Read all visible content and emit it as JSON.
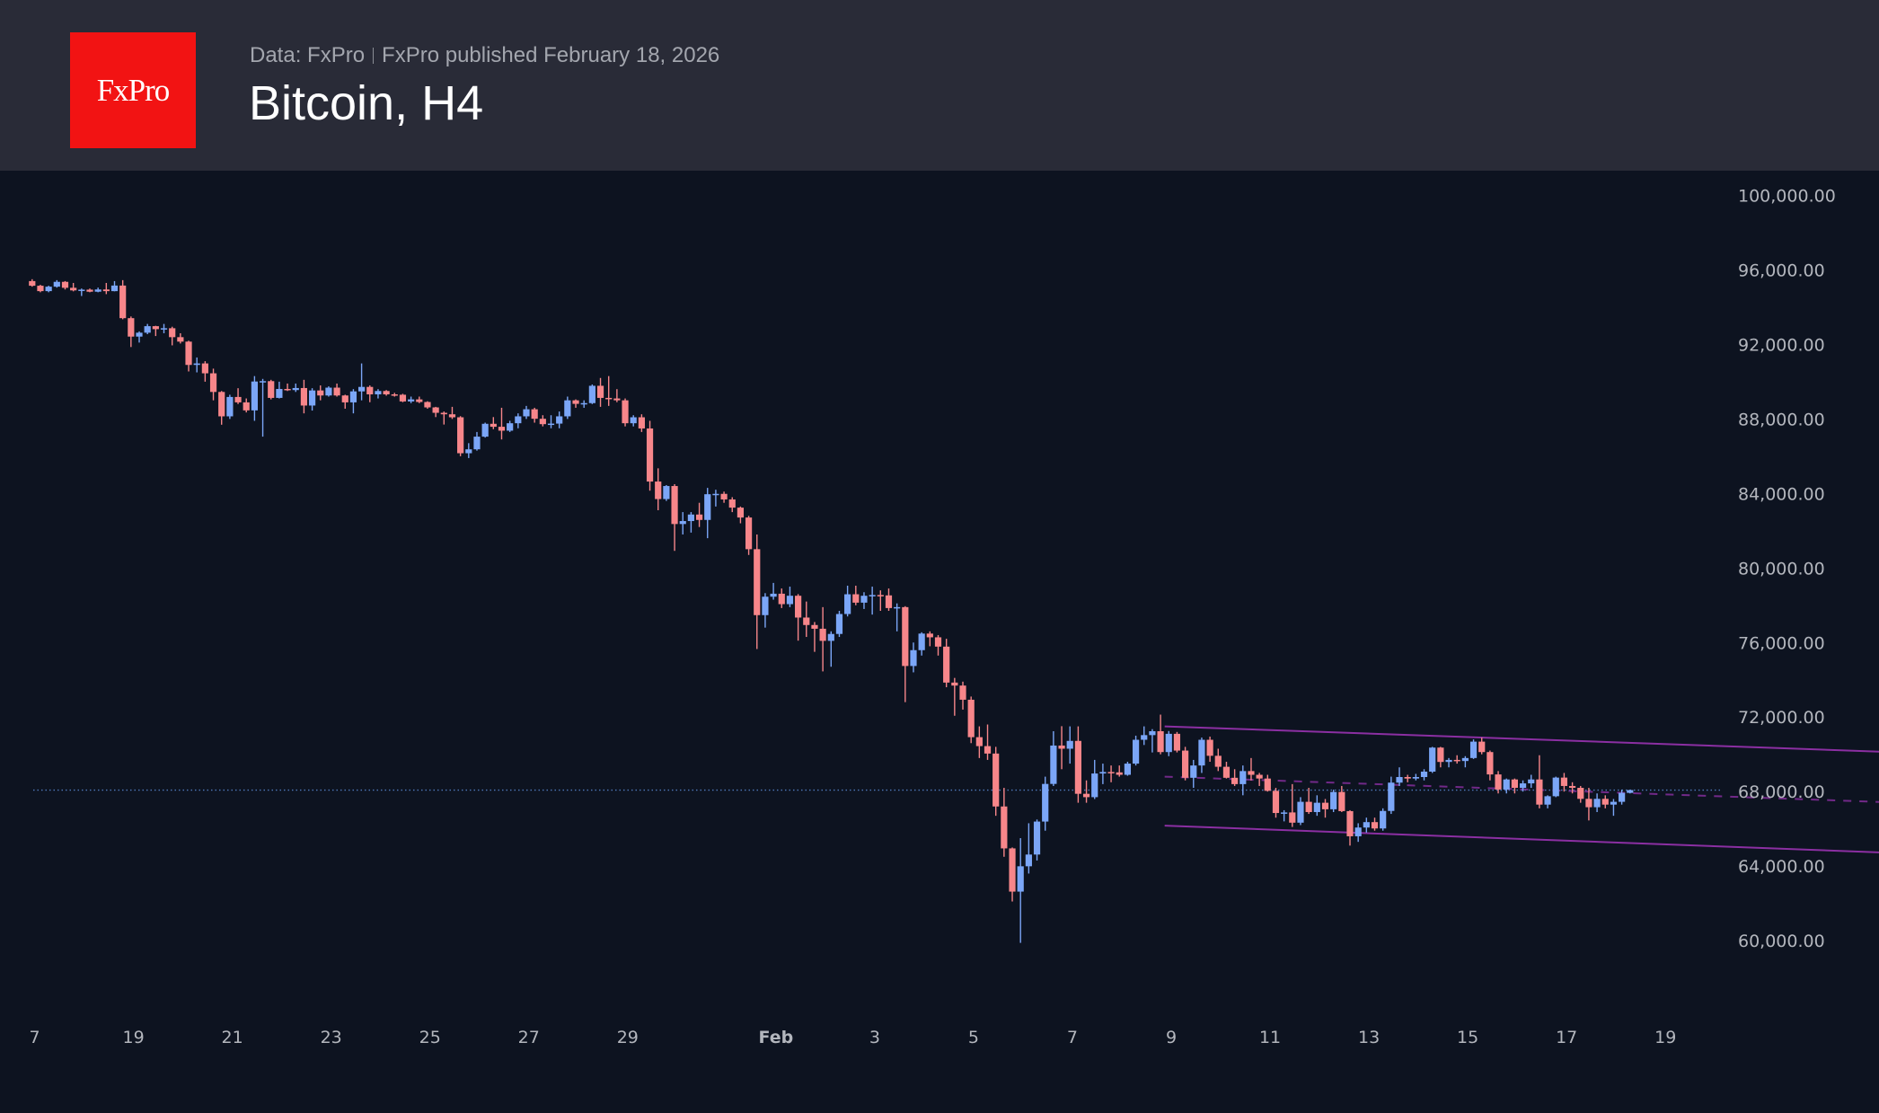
{
  "header": {
    "logo_text": "FxPro",
    "data_source": "Data: FxPro",
    "published": "FxPro published February 18, 2026",
    "title": "Bitcoin, H4"
  },
  "colors": {
    "up": "#7ba6f7",
    "down": "#f7868a",
    "channel": "#8b2fa2",
    "price_line": "#4f77b8",
    "axis_text": "#b3b6bd"
  },
  "chart_data": {
    "type": "candlestick",
    "title": "Bitcoin, H4",
    "timeframe": "4H",
    "first_candle": "Jan 16 20:00",
    "ylim": [
      57000,
      102000
    ],
    "y_ticks": [
      "100,000.00",
      "96,000.00",
      "92,000.00",
      "88,000.00",
      "84,000.00",
      "80,000.00",
      "76,000.00",
      "72,000.00",
      "68,000.00",
      "64,000.00",
      "60,000.00"
    ],
    "y_tick_values": [
      100000,
      96000,
      92000,
      88000,
      84000,
      80000,
      76000,
      72000,
      68000,
      64000,
      60000
    ],
    "x_ticks": [
      {
        "label": "7",
        "candle": 1
      },
      {
        "label": "19",
        "candle": 13
      },
      {
        "label": "21",
        "candle": 25
      },
      {
        "label": "23",
        "candle": 37
      },
      {
        "label": "25",
        "candle": 49
      },
      {
        "label": "27",
        "candle": 61
      },
      {
        "label": "29",
        "candle": 73
      },
      {
        "label": "Feb",
        "candle": 91,
        "bold": true
      },
      {
        "label": "3",
        "candle": 103
      },
      {
        "label": "5",
        "candle": 115
      },
      {
        "label": "7",
        "candle": 127
      },
      {
        "label": "9",
        "candle": 139
      },
      {
        "label": "11",
        "candle": 151
      },
      {
        "label": "13",
        "candle": 163
      },
      {
        "label": "15",
        "candle": 175
      },
      {
        "label": "17",
        "candle": 187
      },
      {
        "label": "19",
        "candle": 199
      }
    ],
    "current_price": 68080,
    "channel": {
      "upper": [
        [
          137.5,
          71500
        ],
        [
          227,
          70100
        ]
      ],
      "middle": [
        [
          137.5,
          68800
        ],
        [
          227,
          67400
        ]
      ],
      "lower": [
        [
          137.5,
          66170
        ],
        [
          227,
          64690
        ]
      ]
    },
    "ohlc_thousands": [
      [
        95.4,
        95.5,
        95.1,
        95.15
      ],
      [
        95.15,
        95.2,
        94.8,
        94.86
      ],
      [
        94.86,
        95.15,
        94.8,
        95.1
      ],
      [
        95.1,
        95.45,
        95.05,
        95.36
      ],
      [
        95.36,
        95.4,
        94.95,
        95.04
      ],
      [
        95.04,
        95.3,
        94.85,
        94.9
      ],
      [
        94.9,
        95.0,
        94.6,
        94.94
      ],
      [
        94.94,
        95.0,
        94.8,
        94.83
      ],
      [
        94.83,
        95.05,
        94.8,
        94.95
      ],
      [
        94.95,
        95.3,
        94.7,
        94.86
      ],
      [
        94.86,
        95.4,
        94.85,
        95.16
      ],
      [
        95.16,
        95.45,
        93.35,
        93.41
      ],
      [
        93.41,
        93.5,
        91.86,
        92.42
      ],
      [
        92.42,
        92.7,
        92.1,
        92.63
      ],
      [
        92.63,
        93.1,
        92.55,
        92.98
      ],
      [
        92.98,
        93.0,
        92.45,
        92.82
      ],
      [
        92.82,
        93.1,
        92.6,
        92.87
      ],
      [
        92.87,
        92.95,
        91.95,
        92.39
      ],
      [
        92.39,
        92.6,
        92.05,
        92.15
      ],
      [
        92.15,
        92.2,
        90.55,
        90.9
      ],
      [
        90.9,
        91.3,
        90.5,
        90.98
      ],
      [
        90.98,
        91.1,
        90.0,
        90.45
      ],
      [
        90.45,
        90.7,
        89.0,
        89.45
      ],
      [
        89.45,
        89.5,
        87.69,
        88.14
      ],
      [
        88.14,
        89.3,
        88.0,
        89.18
      ],
      [
        89.18,
        89.65,
        88.8,
        88.89
      ],
      [
        88.89,
        89.1,
        88.35,
        88.46
      ],
      [
        88.46,
        90.3,
        87.9,
        90.01
      ],
      [
        90.01,
        90.15,
        87.05,
        90.03
      ],
      [
        90.03,
        90.1,
        89.05,
        89.13
      ],
      [
        89.13,
        90.0,
        89.1,
        89.61
      ],
      [
        89.61,
        89.9,
        89.5,
        89.55
      ],
      [
        89.55,
        89.9,
        89.45,
        89.66
      ],
      [
        89.66,
        90.1,
        88.3,
        88.72
      ],
      [
        88.72,
        89.65,
        88.45,
        89.53
      ],
      [
        89.53,
        89.8,
        89.0,
        89.26
      ],
      [
        89.26,
        89.75,
        89.2,
        89.68
      ],
      [
        89.68,
        89.9,
        89.2,
        89.26
      ],
      [
        89.26,
        89.3,
        88.55,
        88.89
      ],
      [
        88.89,
        89.6,
        88.3,
        89.48
      ],
      [
        89.48,
        90.98,
        89.0,
        89.72
      ],
      [
        89.72,
        89.8,
        88.9,
        89.32
      ],
      [
        89.32,
        89.6,
        89.1,
        89.5
      ],
      [
        89.5,
        89.55,
        89.25,
        89.32
      ],
      [
        89.32,
        89.4,
        89.2,
        89.3
      ],
      [
        89.3,
        89.35,
        88.9,
        88.94
      ],
      [
        88.94,
        89.2,
        88.85,
        89.05
      ],
      [
        89.05,
        89.2,
        88.85,
        88.91
      ],
      [
        88.91,
        88.95,
        88.55,
        88.62
      ],
      [
        88.62,
        88.65,
        88.1,
        88.33
      ],
      [
        88.33,
        88.4,
        87.7,
        88.25
      ],
      [
        88.25,
        88.65,
        88.0,
        88.09
      ],
      [
        88.09,
        88.15,
        86.0,
        86.16
      ],
      [
        86.16,
        86.7,
        85.9,
        86.37
      ],
      [
        86.37,
        87.3,
        86.3,
        87.05
      ],
      [
        87.05,
        87.8,
        87.0,
        87.74
      ],
      [
        87.74,
        88.1,
        87.45,
        87.58
      ],
      [
        87.58,
        88.6,
        86.9,
        87.37
      ],
      [
        87.37,
        87.9,
        87.3,
        87.77
      ],
      [
        87.77,
        88.3,
        87.5,
        88.14
      ],
      [
        88.14,
        88.7,
        88.0,
        88.52
      ],
      [
        88.52,
        88.6,
        87.8,
        88.01
      ],
      [
        88.01,
        88.2,
        87.6,
        87.72
      ],
      [
        87.72,
        88.2,
        87.5,
        87.75
      ],
      [
        87.75,
        88.4,
        87.5,
        88.14
      ],
      [
        88.14,
        89.2,
        88.0,
        89.0
      ],
      [
        89.0,
        89.05,
        88.6,
        88.81
      ],
      [
        88.81,
        89.0,
        88.6,
        88.85
      ],
      [
        88.85,
        89.85,
        88.8,
        89.78
      ],
      [
        89.78,
        90.2,
        88.65,
        89.13
      ],
      [
        89.13,
        90.3,
        88.7,
        89.1
      ],
      [
        89.1,
        89.6,
        88.9,
        89.0
      ],
      [
        89.0,
        89.1,
        87.6,
        87.77
      ],
      [
        87.77,
        88.2,
        87.6,
        88.09
      ],
      [
        88.09,
        88.25,
        87.3,
        87.49
      ],
      [
        87.49,
        87.9,
        84.15,
        84.64
      ],
      [
        84.64,
        85.35,
        83.1,
        83.7
      ],
      [
        83.7,
        84.45,
        83.6,
        84.4
      ],
      [
        84.4,
        84.5,
        80.92,
        82.36
      ],
      [
        82.36,
        83.0,
        81.8,
        82.52
      ],
      [
        82.52,
        83.0,
        81.9,
        82.87
      ],
      [
        82.87,
        83.5,
        82.2,
        82.58
      ],
      [
        82.58,
        84.3,
        81.6,
        83.96
      ],
      [
        83.96,
        84.2,
        83.3,
        83.98
      ],
      [
        83.98,
        84.1,
        83.5,
        83.68
      ],
      [
        83.68,
        83.8,
        83.0,
        83.24
      ],
      [
        83.24,
        83.3,
        82.4,
        82.71
      ],
      [
        82.71,
        82.8,
        80.7,
        81.01
      ],
      [
        81.01,
        81.8,
        75.65,
        77.47
      ],
      [
        77.47,
        78.65,
        76.8,
        78.46
      ],
      [
        78.46,
        79.2,
        78.3,
        78.62
      ],
      [
        78.62,
        78.9,
        77.85,
        78.06
      ],
      [
        78.06,
        79.0,
        77.9,
        78.51
      ],
      [
        78.51,
        78.6,
        76.1,
        77.34
      ],
      [
        77.34,
        78.2,
        76.3,
        76.94
      ],
      [
        76.94,
        77.1,
        75.5,
        76.74
      ],
      [
        76.74,
        77.9,
        74.45,
        76.09
      ],
      [
        76.09,
        76.6,
        74.7,
        76.46
      ],
      [
        76.46,
        77.7,
        76.3,
        77.53
      ],
      [
        77.53,
        79.05,
        77.4,
        78.59
      ],
      [
        78.59,
        79.05,
        78.0,
        78.14
      ],
      [
        78.14,
        78.7,
        77.8,
        78.51
      ],
      [
        78.51,
        79.0,
        77.5,
        78.55
      ],
      [
        78.55,
        78.8,
        77.7,
        78.53
      ],
      [
        78.53,
        78.9,
        77.7,
        77.85
      ],
      [
        77.85,
        78.1,
        76.6,
        77.9
      ],
      [
        77.9,
        77.95,
        72.8,
        74.74
      ],
      [
        74.74,
        76.0,
        74.4,
        75.59
      ],
      [
        75.59,
        76.55,
        75.3,
        76.48
      ],
      [
        76.48,
        76.6,
        75.8,
        76.28
      ],
      [
        76.28,
        76.4,
        75.3,
        75.78
      ],
      [
        75.78,
        76.2,
        73.6,
        73.85
      ],
      [
        73.85,
        74.1,
        72.07,
        73.69
      ],
      [
        73.69,
        73.9,
        72.4,
        72.93
      ],
      [
        72.93,
        73.1,
        70.6,
        70.92
      ],
      [
        70.92,
        71.5,
        69.8,
        70.44
      ],
      [
        70.44,
        71.6,
        69.7,
        70.04
      ],
      [
        70.04,
        70.4,
        66.7,
        67.2
      ],
      [
        67.2,
        68.2,
        64.5,
        64.95
      ],
      [
        64.95,
        65.0,
        62.1,
        62.63
      ],
      [
        62.63,
        65.5,
        59.88,
        63.99
      ],
      [
        63.99,
        66.3,
        63.6,
        64.62
      ],
      [
        64.62,
        66.5,
        64.3,
        66.39
      ],
      [
        66.39,
        68.8,
        65.9,
        68.41
      ],
      [
        68.41,
        71.24,
        68.3,
        70.47
      ],
      [
        70.47,
        71.51,
        69.2,
        70.3
      ],
      [
        70.3,
        71.5,
        69.5,
        70.72
      ],
      [
        70.72,
        71.5,
        67.4,
        67.88
      ],
      [
        67.88,
        68.6,
        67.4,
        67.7
      ],
      [
        67.7,
        69.7,
        67.6,
        68.97
      ],
      [
        68.97,
        69.5,
        68.4,
        69.05
      ],
      [
        69.05,
        69.4,
        68.5,
        69.03
      ],
      [
        69.03,
        69.4,
        68.8,
        68.9
      ],
      [
        68.9,
        69.6,
        68.85,
        69.5
      ],
      [
        69.5,
        71.0,
        69.4,
        70.78
      ],
      [
        70.78,
        71.5,
        70.5,
        71.03
      ],
      [
        71.03,
        71.35,
        70.1,
        71.24
      ],
      [
        71.24,
        72.13,
        70.0,
        70.12
      ],
      [
        70.12,
        71.25,
        69.9,
        71.1
      ],
      [
        71.1,
        71.2,
        70.1,
        70.2
      ],
      [
        70.2,
        70.4,
        68.6,
        68.74
      ],
      [
        68.74,
        69.7,
        68.2,
        69.4
      ],
      [
        69.4,
        70.9,
        69.0,
        70.78
      ],
      [
        70.78,
        70.95,
        69.6,
        69.92
      ],
      [
        69.92,
        70.3,
        69.1,
        69.33
      ],
      [
        69.33,
        69.6,
        68.7,
        68.74
      ],
      [
        68.74,
        69.2,
        68.3,
        68.4
      ],
      [
        68.4,
        69.4,
        67.8,
        69.1
      ],
      [
        69.1,
        69.8,
        68.6,
        68.9
      ],
      [
        68.9,
        69.0,
        68.3,
        68.7
      ],
      [
        68.7,
        68.9,
        68.0,
        68.04
      ],
      [
        68.04,
        68.2,
        66.6,
        66.85
      ],
      [
        66.85,
        67.0,
        66.4,
        66.88
      ],
      [
        66.88,
        68.4,
        66.1,
        66.33
      ],
      [
        66.33,
        67.7,
        66.2,
        67.45
      ],
      [
        67.45,
        68.2,
        66.8,
        66.9
      ],
      [
        66.9,
        67.8,
        66.7,
        67.4
      ],
      [
        67.4,
        67.6,
        66.6,
        67.05
      ],
      [
        67.05,
        68.1,
        66.9,
        67.98
      ],
      [
        67.98,
        68.3,
        66.9,
        66.95
      ],
      [
        66.95,
        67.0,
        65.1,
        65.6
      ],
      [
        65.6,
        66.3,
        65.3,
        66.07
      ],
      [
        66.07,
        66.6,
        65.8,
        66.36
      ],
      [
        66.36,
        66.6,
        65.9,
        66.02
      ],
      [
        66.02,
        67.1,
        65.9,
        66.96
      ],
      [
        66.96,
        68.8,
        66.8,
        68.48
      ],
      [
        68.48,
        69.3,
        68.3,
        68.78
      ],
      [
        68.78,
        68.9,
        68.5,
        68.7
      ],
      [
        68.7,
        68.95,
        68.6,
        68.78
      ],
      [
        68.78,
        69.2,
        68.6,
        69.07
      ],
      [
        69.07,
        70.4,
        69.0,
        70.36
      ],
      [
        70.36,
        70.4,
        69.3,
        69.59
      ],
      [
        69.59,
        69.8,
        69.3,
        69.7
      ],
      [
        69.7,
        69.95,
        69.5,
        69.64
      ],
      [
        69.64,
        69.9,
        69.3,
        69.8
      ],
      [
        69.8,
        70.8,
        69.75,
        70.68
      ],
      [
        70.68,
        70.9,
        70.0,
        70.12
      ],
      [
        70.12,
        70.2,
        68.6,
        68.92
      ],
      [
        68.92,
        69.1,
        67.9,
        68.11
      ],
      [
        68.11,
        68.7,
        67.9,
        68.65
      ],
      [
        68.65,
        68.7,
        67.9,
        68.2
      ],
      [
        68.2,
        68.6,
        68.0,
        68.44
      ],
      [
        68.44,
        68.9,
        68.2,
        68.65
      ],
      [
        68.65,
        69.95,
        67.1,
        67.3
      ],
      [
        67.3,
        67.8,
        67.1,
        67.75
      ],
      [
        67.75,
        68.8,
        67.7,
        68.75
      ],
      [
        68.75,
        69.0,
        68.0,
        68.3
      ],
      [
        68.3,
        68.5,
        67.9,
        68.2
      ],
      [
        68.2,
        68.3,
        67.4,
        67.61
      ],
      [
        67.61,
        68.2,
        66.45,
        67.16
      ],
      [
        67.16,
        67.9,
        66.9,
        67.61
      ],
      [
        67.61,
        67.8,
        67.1,
        67.3
      ],
      [
        67.3,
        67.6,
        66.7,
        67.45
      ],
      [
        67.45,
        68.1,
        67.3,
        67.93
      ],
      [
        67.93,
        68.1,
        67.9,
        68.08
      ]
    ]
  }
}
